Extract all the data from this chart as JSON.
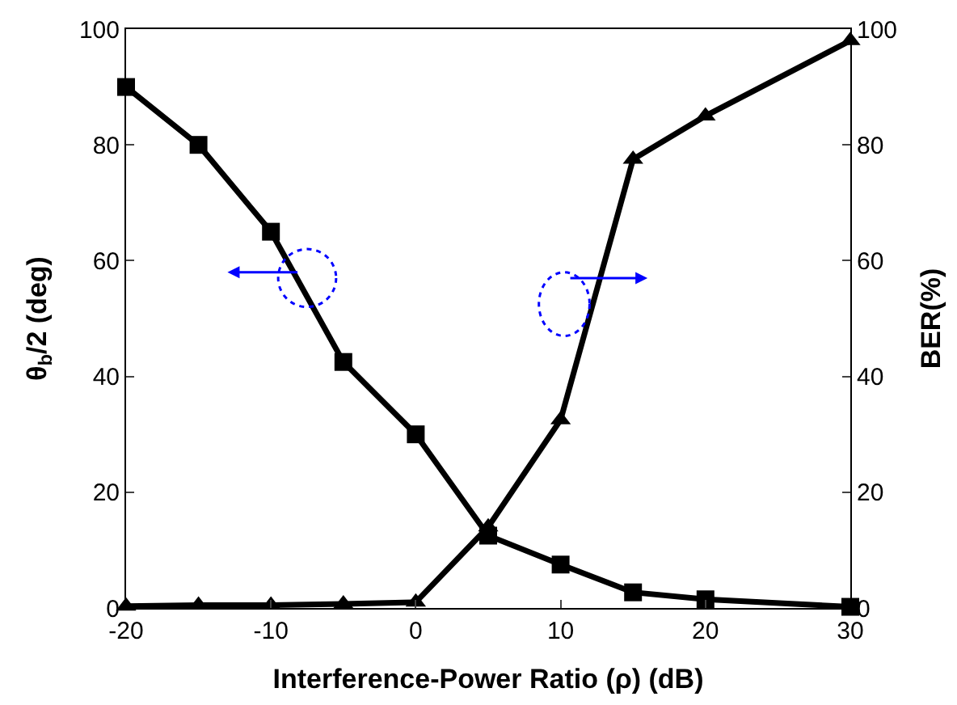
{
  "chart_data": {
    "type": "line",
    "xlabel": "Interference-Power Ratio (ρ) (dB)",
    "ylabel": "θ$_{b}$/2 (deg)",
    "y2label": "BER(%)",
    "x": [
      -20,
      -15,
      -10,
      -5,
      0,
      5,
      10,
      15,
      20,
      30
    ],
    "series": [
      {
        "color": "#000000",
        "marker": "square",
        "values": [
          90,
          80,
          65,
          42.5,
          30,
          12.5,
          7.5,
          2.7,
          1.5,
          0.2
        ]
      },
      {
        "color": "#000000",
        "marker": "triangle",
        "axis": "y2",
        "values": [
          0.3,
          0.5,
          0.5,
          0.7,
          1,
          14,
          32.5,
          77.5,
          85,
          98
        ]
      }
    ],
    "xlim": [
      -20,
      30
    ],
    "xticks": [
      -20,
      -10,
      0,
      10,
      20,
      30
    ],
    "ylim": [
      0,
      100
    ],
    "yticks": [
      0,
      20,
      40,
      60,
      80,
      100
    ],
    "y2lim": [
      0,
      100
    ],
    "y2ticks": [
      0,
      20,
      40,
      60,
      80,
      100
    ],
    "line_style": "solid"
  }
}
